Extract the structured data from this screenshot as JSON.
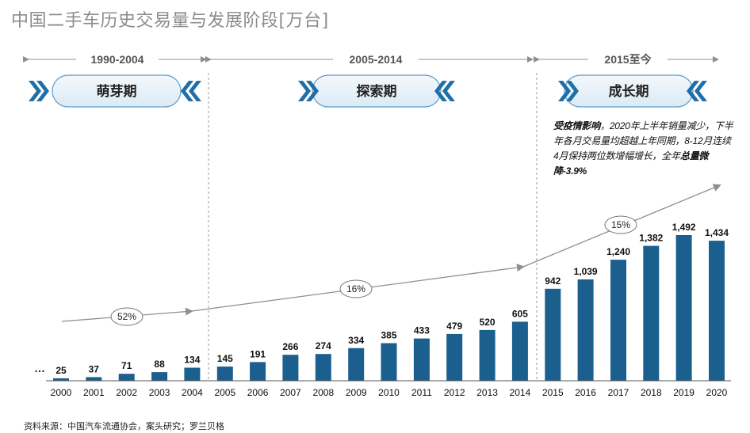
{
  "title": "中国二手车历史交易量与发展阶段[万台]",
  "source": "资料来源：中国汽车流通协会，案头研究；罗兰贝格",
  "colors": {
    "bar": "#1b5f8f",
    "accent": "#1f6fa6",
    "arrow": "#8a9096",
    "title": "#8c8c8c",
    "pill_fill": "#e8f2fa",
    "pill_border": "#5d9bc8"
  },
  "phases": [
    {
      "period": "1990-2004",
      "name": "萌芽期",
      "cagr": "52%"
    },
    {
      "period": "2005-2014",
      "name": "探索期",
      "cagr": "16%"
    },
    {
      "period": "2015至今",
      "name": "成长期",
      "cagr": "15%"
    }
  ],
  "note": {
    "bold1": "受疫情影响",
    "text1": "，2020年上半年销量减少，下半年各月交易量均超越上年同期，8-12月连续4月保持两位数增幅增长，全年",
    "bold2": "总量微降-3.9%"
  },
  "ellipsis": "…",
  "chart_data": {
    "type": "bar",
    "title": "中国二手车历史交易量与发展阶段[万台]",
    "unit": "万台",
    "categories": [
      "2000",
      "2001",
      "2002",
      "2003",
      "2004",
      "2005",
      "2006",
      "2007",
      "2008",
      "2009",
      "2010",
      "2011",
      "2012",
      "2013",
      "2014",
      "2015",
      "2016",
      "2017",
      "2018",
      "2019",
      "2020"
    ],
    "values": [
      25,
      37,
      71,
      88,
      134,
      145,
      191,
      266,
      274,
      334,
      385,
      433,
      479,
      520,
      605,
      942,
      1039,
      1240,
      1382,
      1492,
      1434
    ],
    "value_labels": [
      "25",
      "37",
      "71",
      "88",
      "134",
      "145",
      "191",
      "266",
      "274",
      "334",
      "385",
      "433",
      "479",
      "520",
      "605",
      "942",
      "1,039",
      "1,240",
      "1,382",
      "1,492",
      "1,434"
    ],
    "ylim": [
      0,
      1500
    ],
    "grid": false,
    "xlabel": "",
    "ylabel": ""
  }
}
